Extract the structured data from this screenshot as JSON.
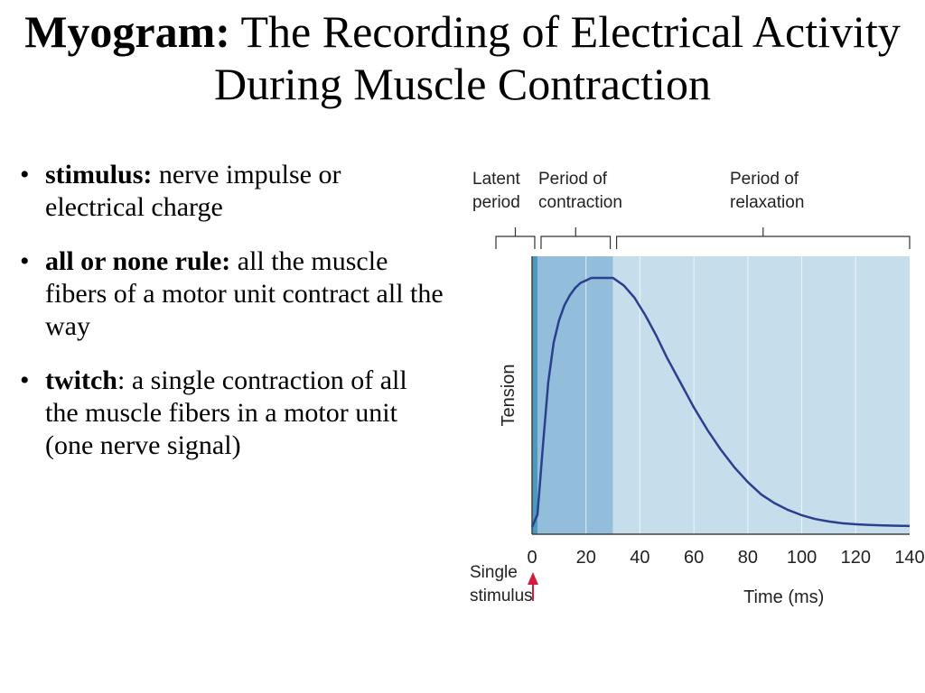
{
  "title": {
    "bold": "Myogram:",
    "rest": "The Recording of Electrical Activity During Muscle Contraction"
  },
  "bullets": [
    {
      "term": "stimulus:",
      "text": " nerve impulse or electrical charge"
    },
    {
      "term": "all or none rule:",
      "text": " all the muscle fibers of a motor unit contract all the way"
    },
    {
      "term": "twitch",
      "text": ": a single contraction of all the muscle fibers in a motor unit (one nerve signal)"
    }
  ],
  "chart_data": {
    "type": "line",
    "xlabel": "Time (ms)",
    "ylabel": "Tension",
    "xlim": [
      0,
      140
    ],
    "xticks": [
      0,
      20,
      40,
      60,
      80,
      100,
      120,
      140
    ],
    "periods": [
      {
        "label": [
          "Latent",
          "period"
        ],
        "start": 0,
        "end": 2,
        "color": "#4a99bf"
      },
      {
        "label": [
          "Period of",
          "contraction"
        ],
        "start": 2,
        "end": 30,
        "color": "#92bedb"
      },
      {
        "label": [
          "Period of",
          "relaxation"
        ],
        "start": 30,
        "end": 140,
        "color": "#c6deec"
      }
    ],
    "stimulus_label": [
      "Single",
      "stimulus"
    ],
    "stimulus_time": 0,
    "series": [
      {
        "x": [
          0,
          2,
          4,
          6,
          8,
          10,
          12,
          14,
          16,
          18,
          20,
          22,
          24,
          26,
          28,
          30,
          34,
          38,
          42,
          46,
          50,
          55,
          60,
          65,
          70,
          75,
          80,
          85,
          90,
          95,
          100,
          105,
          110,
          115,
          120,
          125,
          130,
          135,
          140
        ],
        "y": [
          0.0,
          0.05,
          0.32,
          0.58,
          0.74,
          0.83,
          0.89,
          0.93,
          0.96,
          0.98,
          0.99,
          1.0,
          1.0,
          1.0,
          1.0,
          1.0,
          0.97,
          0.92,
          0.85,
          0.77,
          0.68,
          0.58,
          0.48,
          0.39,
          0.31,
          0.24,
          0.18,
          0.13,
          0.095,
          0.068,
          0.047,
          0.032,
          0.022,
          0.015,
          0.011,
          0.008,
          0.006,
          0.005,
          0.004
        ]
      }
    ],
    "colors": {
      "line": "#2b3f8f",
      "arrow": "#d61a3c",
      "bracket": "#333333"
    }
  }
}
